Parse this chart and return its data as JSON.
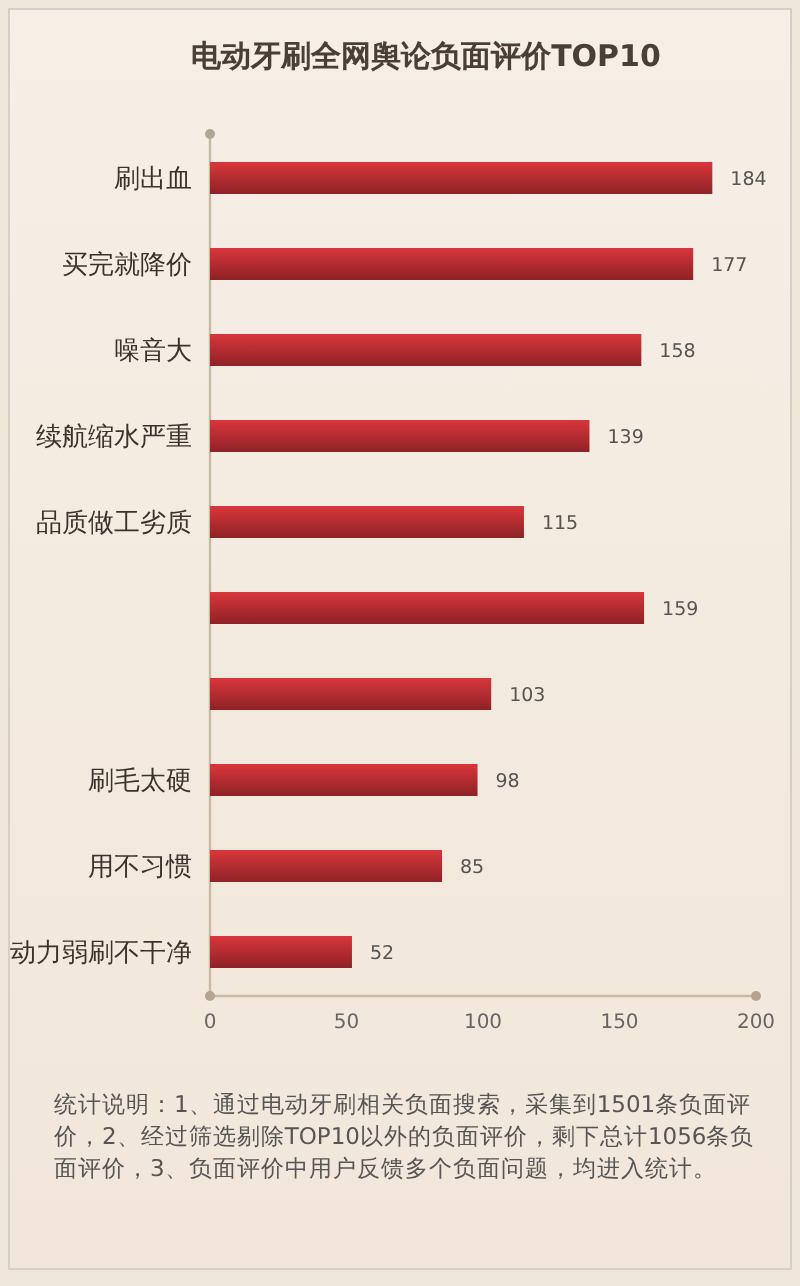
{
  "chart_data": {
    "type": "bar",
    "orientation": "horizontal",
    "title": "电动牙刷全网舆论负面评价TOP10",
    "categories": [
      "刷出血",
      "买完就降价",
      "噪音大",
      "续航缩水严重",
      "品质做工劣质",
      null,
      null,
      "刷毛太硬",
      "用不习惯",
      "动力弱刷不干净"
    ],
    "values": [
      184,
      177,
      158,
      139,
      115,
      159,
      103,
      98,
      85,
      52
    ],
    "color": "#d9363b",
    "xlim": [
      0,
      200
    ],
    "xticks": [
      0,
      50,
      100,
      150,
      200
    ],
    "grid": false,
    "data_labels": true,
    "annotations": [
      "统计说明：1、通过电动牙刷相关负面搜索，采集到1501条负面评价，2、经过筛选剔除TOP10以外的负面评价，剩下总计1056条负面评价，3、负面评价中用户反馈多个负面问题，均进入统计。"
    ]
  }
}
